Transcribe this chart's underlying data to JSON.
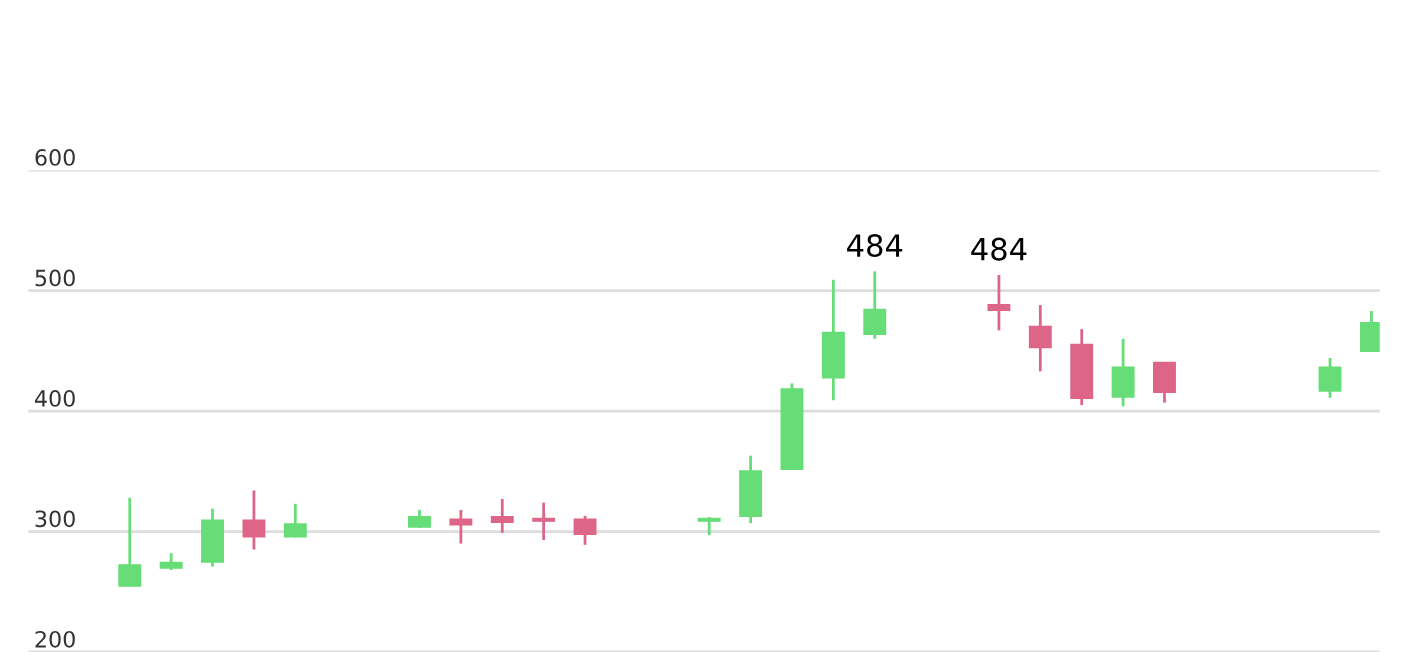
{
  "chart_data": {
    "type": "candlestick",
    "categories": [
      null,
      null,
      null,
      null,
      null,
      null,
      null,
      null,
      null,
      null,
      null,
      null,
      null,
      null,
      null,
      null,
      null,
      null,
      null,
      null,
      null,
      null,
      null,
      null,
      null,
      null,
      null,
      null,
      null,
      null,
      null
    ],
    "ohlc": [
      [
        255,
        328,
        255,
        272
      ],
      [
        270,
        282,
        268,
        274
      ],
      [
        275,
        319,
        271,
        309
      ],
      [
        309,
        334,
        285,
        296
      ],
      [
        296,
        323,
        295,
        306
      ],
      null,
      null,
      [
        304,
        318,
        303,
        312
      ],
      [
        310,
        318,
        290,
        306
      ],
      [
        312,
        327,
        299,
        308
      ],
      [
        310,
        324,
        293,
        309
      ],
      [
        310,
        313,
        289,
        298
      ],
      null,
      null,
      [
        309,
        312,
        297,
        310
      ],
      [
        313,
        363,
        307,
        350
      ],
      [
        352,
        423,
        351,
        418
      ],
      [
        428,
        509,
        409,
        465
      ],
      [
        464,
        516,
        460,
        484
      ],
      null,
      null,
      [
        488,
        513,
        467,
        484
      ],
      [
        470,
        488,
        433,
        453
      ],
      [
        455,
        468,
        405,
        411
      ],
      [
        412,
        460,
        404,
        436
      ],
      [
        440,
        440,
        407,
        416
      ],
      null,
      null,
      null,
      [
        417,
        444,
        411,
        436
      ],
      [
        450,
        483,
        450,
        473
      ]
    ],
    "colors": [
      "#66dd77",
      "#66dd77",
      "#66dd77",
      "#dd6688",
      "#66dd77",
      null,
      null,
      "#66dd77",
      "#dd6688",
      "#dd6688",
      "#dd6688",
      "#dd6688",
      null,
      null,
      "#66dd77",
      "#66dd77",
      "#66dd77",
      "#66dd77",
      "#66dd77",
      null,
      null,
      "#dd6688",
      "#dd6688",
      "#dd6688",
      "#66dd77",
      "#dd6688",
      null,
      null,
      null,
      "#66dd77",
      "#66dd77"
    ],
    "value_labels": [
      null,
      null,
      null,
      null,
      null,
      null,
      null,
      null,
      null,
      null,
      null,
      null,
      null,
      null,
      null,
      null,
      null,
      null,
      "484",
      null,
      null,
      "484",
      null,
      null,
      null,
      null,
      null,
      null,
      null,
      null,
      null
    ],
    "ylim": [
      200,
      600
    ],
    "yticks": [
      200,
      300,
      400,
      500,
      600
    ],
    "grid": "y",
    "tick_labels": "y"
  }
}
